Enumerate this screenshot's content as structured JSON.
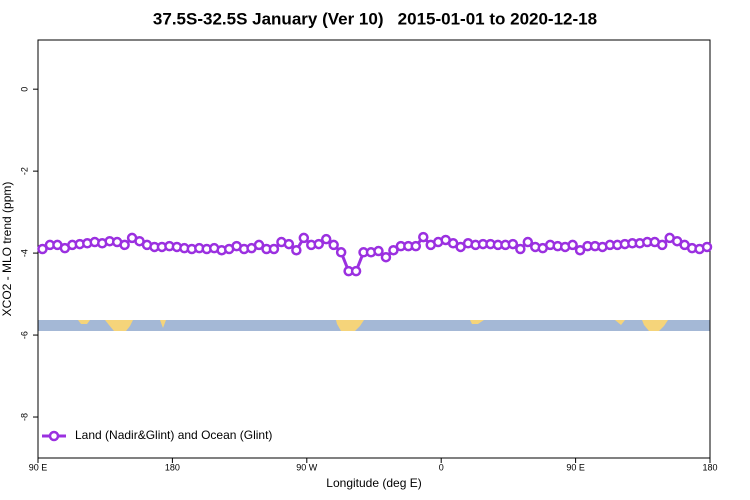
{
  "chart_data": {
    "type": "line",
    "title": "37.5S-32.5S January (Ver 10)   2015-01-01 to 2020-12-18",
    "xlabel": "Longitude (deg E)",
    "ylabel": "XCO2 - MLO trend (ppm)",
    "xlim": [
      90,
      540
    ],
    "ylim": [
      -9.0,
      1.2
    ],
    "xticks": [
      {
        "value": 90,
        "label": "90 E"
      },
      180,
      {
        "value": 270,
        "label": "90 W"
      },
      {
        "value": 360,
        "label": "0"
      },
      {
        "value": 450,
        "label": "90 E"
      },
      {
        "value": 540,
        "label": "180"
      }
    ],
    "yticks": [
      0,
      -2,
      -4,
      -6,
      -8
    ],
    "legend": "bottom-left",
    "x": [
      93,
      98,
      103,
      108,
      113,
      118,
      123,
      128,
      133,
      138,
      143,
      148,
      153,
      158,
      163,
      168,
      173,
      178,
      183,
      188,
      193,
      198,
      203,
      208,
      213,
      218,
      223,
      228,
      233,
      238,
      243,
      248,
      253,
      258,
      263,
      268,
      273,
      278,
      283,
      288,
      293,
      298,
      303,
      308,
      313,
      318,
      323,
      328,
      333,
      338,
      343,
      348,
      353,
      358,
      363,
      368,
      373,
      378,
      383,
      388,
      393,
      398,
      403,
      408,
      413,
      418,
      423,
      428,
      433,
      438,
      443,
      448,
      453,
      458,
      463,
      468,
      473,
      478,
      483,
      488,
      493,
      498,
      503,
      508,
      513,
      518,
      523,
      528,
      533,
      538
    ],
    "series": [
      {
        "name": "Land (Nadir&Glint) and Ocean (Glint)",
        "color": "#9b30e0",
        "values": [
          -3.9,
          -3.8,
          -3.8,
          -3.88,
          -3.8,
          -3.78,
          -3.76,
          -3.73,
          -3.76,
          -3.71,
          -3.73,
          -3.8,
          -3.63,
          -3.71,
          -3.8,
          -3.85,
          -3.85,
          -3.83,
          -3.85,
          -3.88,
          -3.9,
          -3.88,
          -3.9,
          -3.88,
          -3.93,
          -3.9,
          -3.83,
          -3.9,
          -3.88,
          -3.8,
          -3.9,
          -3.9,
          -3.73,
          -3.78,
          -3.93,
          -3.63,
          -3.8,
          -3.78,
          -3.66,
          -3.8,
          -3.98,
          -4.44,
          -4.44,
          -3.98,
          -3.98,
          -3.95,
          -4.1,
          -3.93,
          -3.83,
          -3.83,
          -3.83,
          -3.61,
          -3.8,
          -3.73,
          -3.68,
          -3.76,
          -3.85,
          -3.76,
          -3.8,
          -3.78,
          -3.78,
          -3.8,
          -3.8,
          -3.78,
          -3.9,
          -3.73,
          -3.85,
          -3.88,
          -3.8,
          -3.83,
          -3.85,
          -3.8,
          -3.93,
          -3.83,
          -3.83,
          -3.85,
          -3.8,
          -3.8,
          -3.78,
          -3.76,
          -3.76,
          -3.73,
          -3.73,
          -3.8,
          -3.63,
          -3.71,
          -3.8,
          -3.88,
          -3.9,
          -3.85
        ]
      }
    ]
  }
}
